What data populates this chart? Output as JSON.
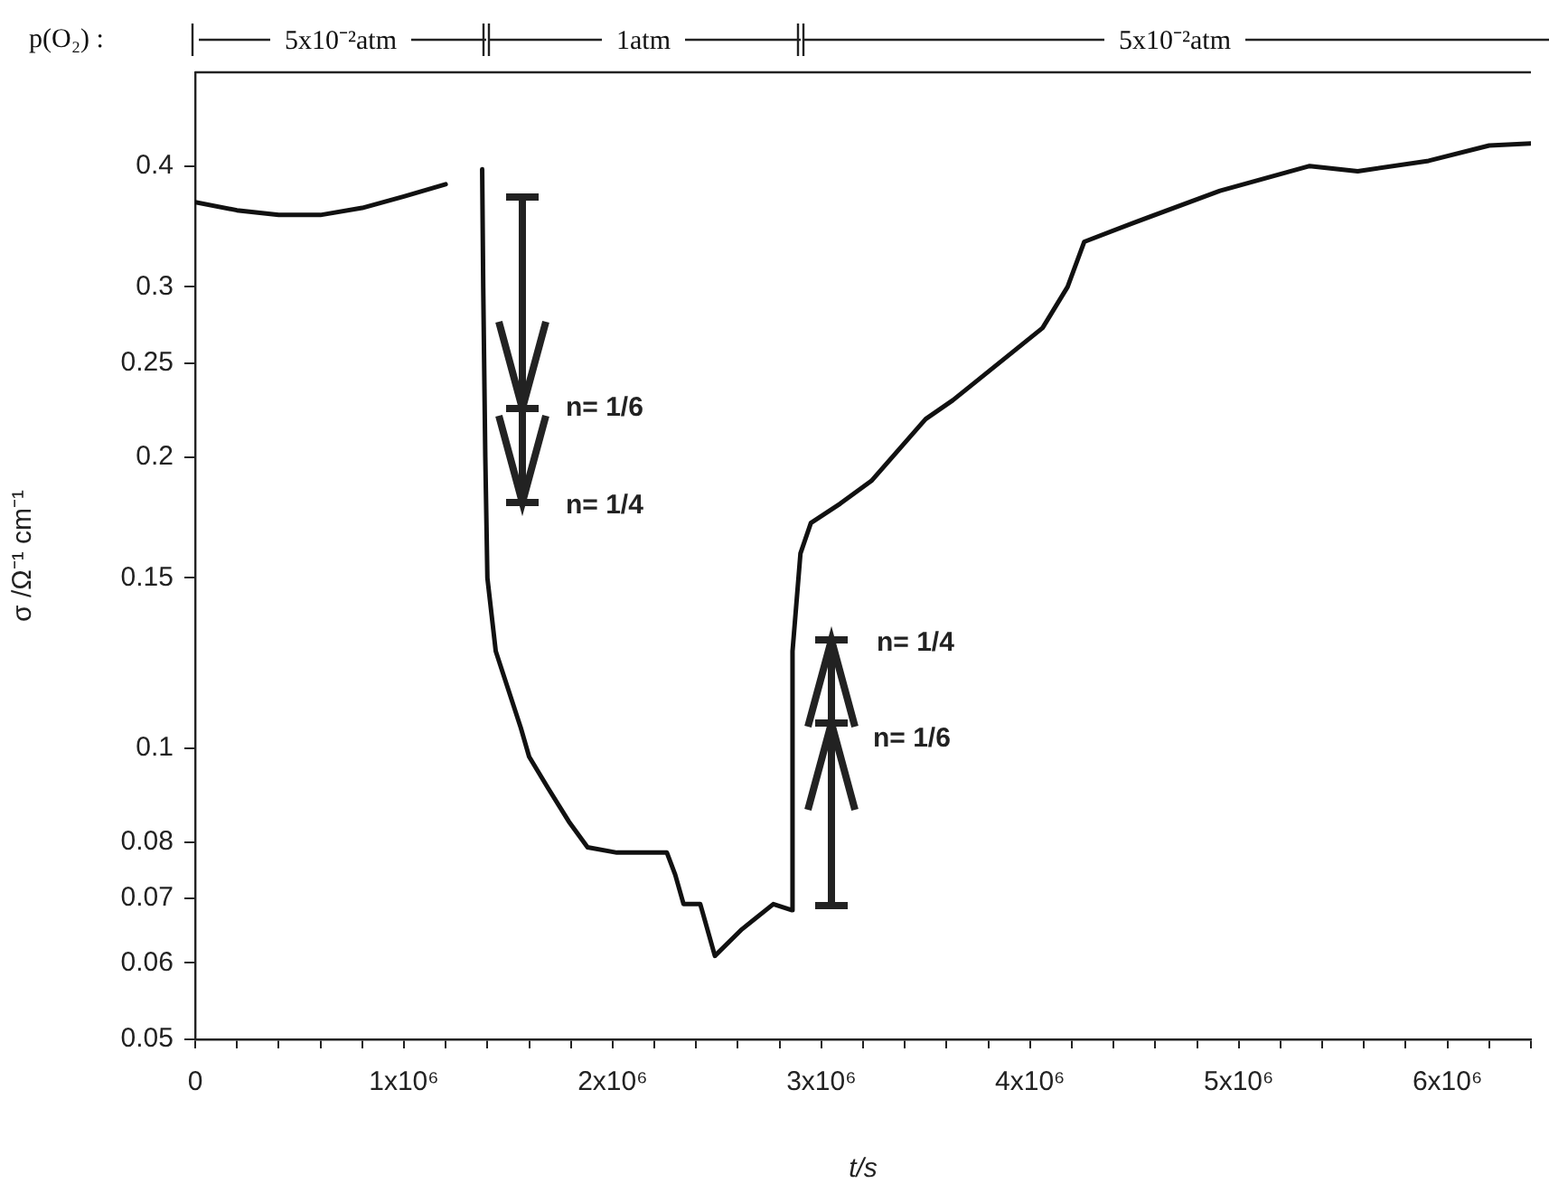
{
  "chart_data": {
    "type": "line",
    "xlabel": "t/s",
    "ylabel": "σ /Ω⁻¹ cm⁻¹",
    "log": "y",
    "grid": false,
    "legend": false,
    "marker": "none",
    "line_style": "solid",
    "xlim": [
      0,
      6400000
    ],
    "ylim": [
      0.05,
      0.5
    ],
    "xticks": [
      {
        "value": 0,
        "label": "0"
      },
      {
        "value": 200000,
        "label": null
      },
      {
        "value": 400000,
        "label": null
      },
      {
        "value": 600000,
        "label": null
      },
      {
        "value": 800000,
        "label": null
      },
      {
        "value": 1000000,
        "label": "1x10⁶"
      },
      {
        "value": 1200000,
        "label": null
      },
      {
        "value": 1400000,
        "label": null
      },
      {
        "value": 1600000,
        "label": null
      },
      {
        "value": 1800000,
        "label": null
      },
      {
        "value": 2000000,
        "label": "2x10⁶"
      },
      {
        "value": 2200000,
        "label": null
      },
      {
        "value": 2400000,
        "label": null
      },
      {
        "value": 2600000,
        "label": null
      },
      {
        "value": 2800000,
        "label": null
      },
      {
        "value": 3000000,
        "label": "3x10⁶"
      },
      {
        "value": 3200000,
        "label": null
      },
      {
        "value": 3400000,
        "label": null
      },
      {
        "value": 3600000,
        "label": null
      },
      {
        "value": 3800000,
        "label": null
      },
      {
        "value": 4000000,
        "label": "4x10⁶"
      },
      {
        "value": 4200000,
        "label": null
      },
      {
        "value": 4400000,
        "label": null
      },
      {
        "value": 4600000,
        "label": null
      },
      {
        "value": 4800000,
        "label": null
      },
      {
        "value": 5000000,
        "label": "5x10⁶"
      },
      {
        "value": 5200000,
        "label": null
      },
      {
        "value": 5400000,
        "label": null
      },
      {
        "value": 5600000,
        "label": null
      },
      {
        "value": 5800000,
        "label": null
      },
      {
        "value": 6000000,
        "label": "6x10⁶"
      },
      {
        "value": 6200000,
        "label": null
      },
      {
        "value": 6400000,
        "label": null
      }
    ],
    "yticks": [
      0.05,
      0.06,
      0.07,
      0.08,
      0.1,
      0.15,
      0.2,
      0.25,
      0.3,
      0.4
    ],
    "series": [
      {
        "color": "#111111",
        "x": [
          0,
          200000,
          400000,
          600000,
          800000,
          1000000,
          1200000,
          1290000,
          1375000,
          1380000,
          1390000,
          1400000,
          1440000,
          1560000,
          1600000,
          1690000,
          1790000,
          1880000,
          2020000,
          2260000,
          2300000,
          2340000,
          2420000,
          2490000,
          2620000,
          2770000,
          2860000,
          2862000,
          2900000,
          2950000,
          3090000,
          3240000,
          3500000,
          3630000,
          4060000,
          4180000,
          4260000,
          4490000,
          4910000,
          5340000,
          5570000,
          5910000,
          6200000,
          6400000
        ],
        "values": [
          0.367,
          0.36,
          0.356,
          0.356,
          0.362,
          0.372,
          0.383,
          null,
          0.397,
          0.3,
          0.2,
          0.15,
          0.126,
          0.105,
          0.098,
          0.091,
          0.084,
          0.079,
          0.078,
          0.078,
          0.074,
          0.069,
          0.069,
          0.061,
          0.065,
          0.069,
          0.068,
          0.126,
          0.159,
          0.171,
          0.179,
          0.189,
          0.219,
          0.229,
          0.272,
          0.3,
          0.334,
          0.349,
          0.377,
          0.4,
          0.395,
          0.405,
          0.42,
          0.422
        ]
      }
    ],
    "annotations": [
      "p(O₂) :",
      "5x10⁻²atm",
      "1atm",
      "5x10⁻²atm",
      "n= 1/6",
      "n= 1/4",
      "n= 1/4",
      "n= 1/6"
    ]
  }
}
